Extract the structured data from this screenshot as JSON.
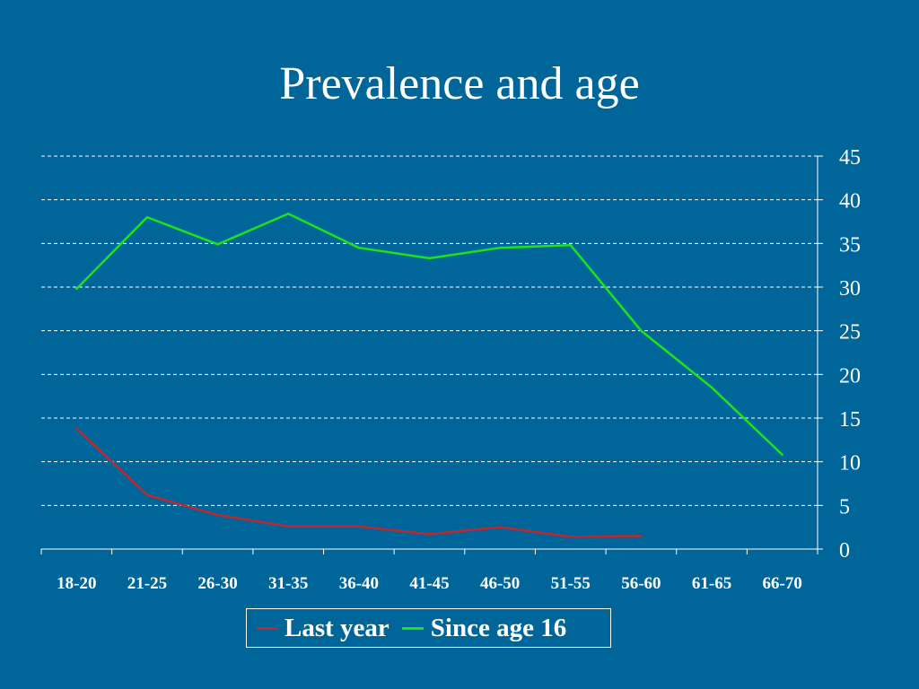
{
  "slide": {
    "title": "Prevalence and age"
  },
  "colors": {
    "background": "#006699",
    "gridline": "#ffffff",
    "text": "#ffffff"
  },
  "chart_data": {
    "type": "line",
    "title": "",
    "xlabel": "",
    "ylabel": "",
    "categories": [
      "18-20",
      "21-25",
      "26-30",
      "31-35",
      "36-40",
      "41-45",
      "46-50",
      "51-55",
      "56-60",
      "61-65",
      "66-70"
    ],
    "ylim": [
      0,
      45
    ],
    "yticks": [
      0,
      5,
      10,
      15,
      20,
      25,
      30,
      35,
      40,
      45
    ],
    "y_axis_side": "right",
    "grid": true,
    "legend_position": "bottom",
    "series": [
      {
        "name": "Last year",
        "color": "#c0282d",
        "values": [
          13.8,
          6.2,
          3.9,
          2.6,
          2.6,
          1.7,
          2.5,
          1.4,
          1.5,
          null,
          null
        ]
      },
      {
        "name": "Since age 16",
        "color": "#19e619",
        "values": [
          29.8,
          38.0,
          34.9,
          38.4,
          34.5,
          33.3,
          34.5,
          34.8,
          25.0,
          18.5,
          10.8
        ]
      }
    ]
  }
}
